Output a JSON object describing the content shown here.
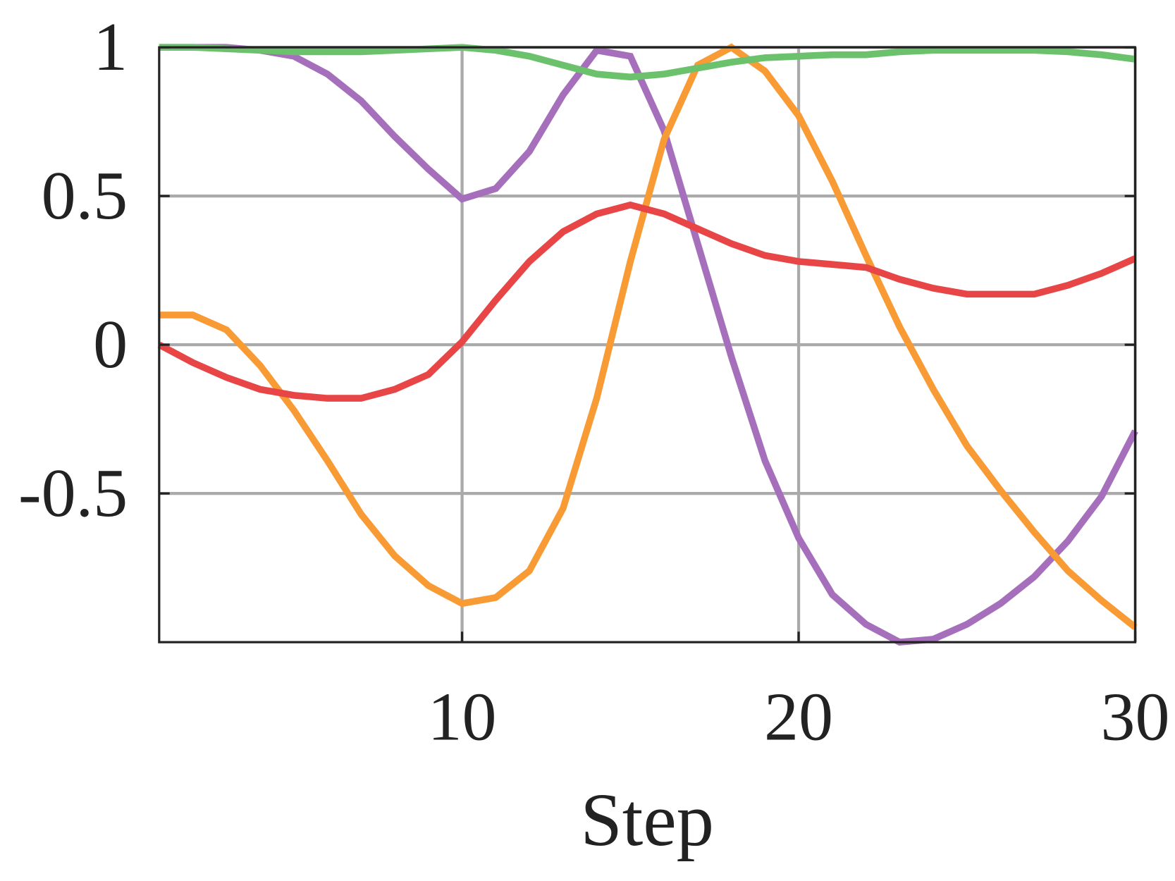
{
  "chart_data": {
    "type": "line",
    "x_label": "Step",
    "x": [
      1,
      2,
      3,
      4,
      5,
      6,
      7,
      8,
      9,
      10,
      11,
      12,
      13,
      14,
      15,
      16,
      17,
      18,
      19,
      20,
      21,
      22,
      23,
      24,
      25,
      26,
      27,
      28,
      29,
      30
    ],
    "series": [
      {
        "color": "#a66fbb",
        "values": [
          1,
          1,
          1,
          0.99,
          0.97,
          0.91,
          0.82,
          0.7,
          0.59,
          0.49,
          0.525,
          0.65,
          0.84,
          0.99,
          0.97,
          0.72,
          0.34,
          -0.04,
          -0.39,
          -0.65,
          -0.84,
          -0.94,
          -1.0,
          -0.99,
          -0.94,
          -0.87,
          -0.78,
          -0.66,
          -0.51,
          -0.29
        ]
      },
      {
        "color": "#f99b35",
        "values": [
          0.1,
          0.1,
          0.05,
          -0.07,
          -0.22,
          -0.39,
          -0.57,
          -0.71,
          -0.81,
          -0.87,
          -0.85,
          -0.76,
          -0.55,
          -0.18,
          0.28,
          0.69,
          0.94,
          1.0,
          0.92,
          0.77,
          0.55,
          0.3,
          0.06,
          -0.15,
          -0.34,
          -0.49,
          -0.63,
          -0.76,
          -0.86,
          -0.95
        ]
      },
      {
        "color": "#e84646",
        "values": [
          0,
          -0.06,
          -0.11,
          -0.15,
          -0.17,
          -0.18,
          -0.18,
          -0.15,
          -0.1,
          0.01,
          0.15,
          0.28,
          0.38,
          0.44,
          0.47,
          0.44,
          0.39,
          0.34,
          0.3,
          0.28,
          0.27,
          0.26,
          0.22,
          0.19,
          0.17,
          0.17,
          0.17,
          0.2,
          0.24,
          0.29
        ]
      },
      {
        "color": "#6cc16c",
        "values": [
          1,
          1,
          0.995,
          0.99,
          0.985,
          0.985,
          0.985,
          0.99,
          0.995,
          1,
          0.99,
          0.97,
          0.94,
          0.91,
          0.9,
          0.91,
          0.93,
          0.95,
          0.965,
          0.97,
          0.975,
          0.975,
          0.985,
          0.99,
          0.99,
          0.99,
          0.99,
          0.985,
          0.975,
          0.96
        ]
      }
    ],
    "xlim": [
      1,
      30
    ],
    "xticks": [
      10,
      20,
      30
    ],
    "ylim": [
      -1,
      1
    ],
    "yticks": [
      -0.5,
      0,
      0.5,
      1
    ],
    "grid": true
  }
}
